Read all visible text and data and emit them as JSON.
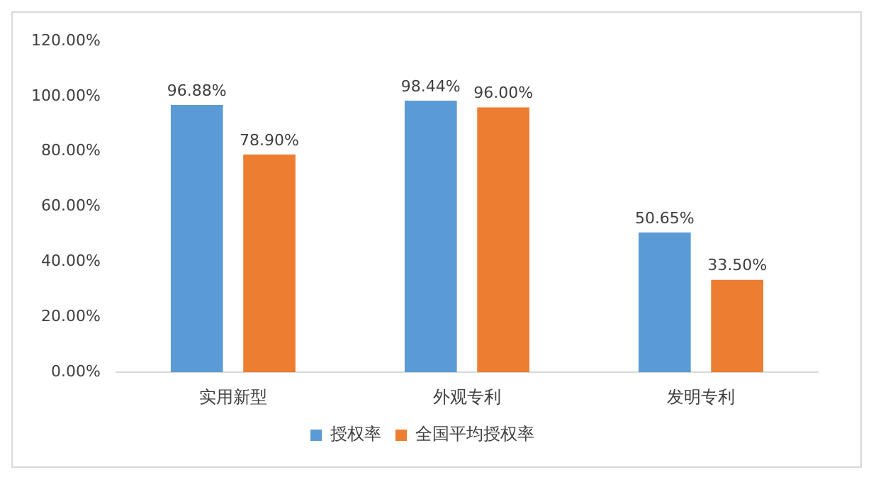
{
  "chart_data": {
    "type": "bar",
    "categories": [
      "实用新型",
      "外观专利",
      "发明专利"
    ],
    "series": [
      {
        "name": "授权率",
        "color": "#5b9bd5",
        "values": [
          96.88,
          98.44,
          50.65
        ],
        "value_labels": [
          "96.88%",
          "98.44%",
          "50.65%"
        ]
      },
      {
        "name": "全国平均授权率",
        "color": "#ed7d31",
        "values": [
          78.9,
          96.0,
          33.5
        ],
        "value_labels": [
          "78.90%",
          "96.00%",
          "33.50%"
        ]
      }
    ],
    "ylim": [
      0,
      120
    ],
    "yticks": [
      {
        "value": 0,
        "label": "0.00%"
      },
      {
        "value": 20,
        "label": "20.00%"
      },
      {
        "value": 40,
        "label": "40.00%"
      },
      {
        "value": 60,
        "label": "60.00%"
      },
      {
        "value": 80,
        "label": "80.00%"
      },
      {
        "value": 100,
        "label": "100.00%"
      },
      {
        "value": 120,
        "label": "120.00%"
      }
    ],
    "grid": false,
    "legend": "bottom"
  }
}
